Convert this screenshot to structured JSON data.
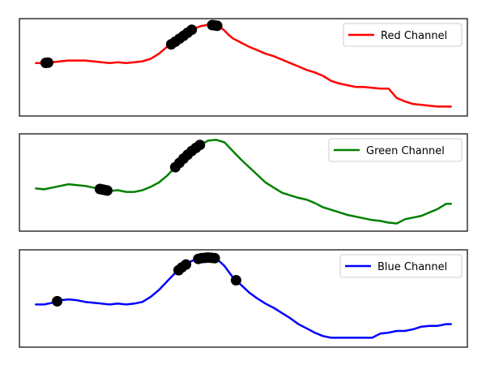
{
  "chart_data": [
    {
      "type": "line",
      "legend_position": "upper-right",
      "grid": false,
      "axes_ticks": false,
      "series": [
        {
          "name": "Red Channel",
          "color": "#ff0000",
          "x": [
            0,
            10,
            20,
            30,
            40,
            50,
            60,
            70,
            80,
            90,
            100,
            110,
            120,
            130,
            140,
            150,
            160,
            170,
            180,
            190,
            200,
            210,
            220,
            225,
            230,
            235,
            240,
            250,
            260,
            270,
            280,
            290,
            300,
            310,
            320,
            330,
            340,
            350,
            360,
            370,
            380,
            390,
            400,
            410,
            420,
            430,
            440,
            450,
            460,
            470,
            480,
            490,
            500,
            506
          ],
          "y": [
            0.55,
            0.55,
            0.56,
            0.57,
            0.58,
            0.58,
            0.58,
            0.57,
            0.56,
            0.55,
            0.56,
            0.55,
            0.56,
            0.57,
            0.6,
            0.66,
            0.74,
            0.8,
            0.87,
            0.94,
            0.98,
            1.0,
            0.99,
            0.97,
            0.93,
            0.88,
            0.84,
            0.79,
            0.74,
            0.7,
            0.66,
            0.63,
            0.59,
            0.55,
            0.51,
            0.47,
            0.44,
            0.4,
            0.34,
            0.31,
            0.29,
            0.27,
            0.27,
            0.26,
            0.25,
            0.25,
            0.14,
            0.1,
            0.07,
            0.06,
            0.05,
            0.04,
            0.04,
            0.04
          ]
        }
      ],
      "markers": {
        "color": "#000000",
        "x": [
          12,
          15,
          165,
          170,
          175,
          180,
          185,
          190,
          215,
          218,
          221
        ]
      }
    },
    {
      "type": "line",
      "legend_position": "upper-right",
      "grid": false,
      "axes_ticks": false,
      "series": [
        {
          "name": "Green Channel",
          "color": "#008000",
          "x": [
            0,
            10,
            20,
            30,
            40,
            50,
            60,
            70,
            80,
            90,
            100,
            110,
            120,
            130,
            140,
            150,
            160,
            170,
            180,
            190,
            200,
            210,
            220,
            230,
            240,
            250,
            260,
            270,
            280,
            290,
            300,
            310,
            320,
            330,
            340,
            350,
            360,
            370,
            380,
            390,
            400,
            410,
            420,
            430,
            440,
            450,
            460,
            470,
            480,
            490,
            500,
            506
          ],
          "y": [
            0.43,
            0.42,
            0.44,
            0.46,
            0.48,
            0.47,
            0.46,
            0.44,
            0.42,
            0.4,
            0.41,
            0.39,
            0.39,
            0.41,
            0.45,
            0.5,
            0.58,
            0.68,
            0.78,
            0.87,
            0.94,
            0.99,
            1.0,
            0.97,
            0.87,
            0.77,
            0.68,
            0.59,
            0.5,
            0.44,
            0.38,
            0.35,
            0.32,
            0.3,
            0.26,
            0.21,
            0.18,
            0.15,
            0.12,
            0.1,
            0.08,
            0.06,
            0.05,
            0.03,
            0.02,
            0.07,
            0.09,
            0.11,
            0.15,
            0.19,
            0.25,
            0.25
          ]
        }
      ],
      "markers": {
        "color": "#000000",
        "x": [
          78,
          81,
          84,
          87,
          170,
          175,
          180,
          185,
          190,
          195,
          200
        ]
      }
    },
    {
      "type": "line",
      "legend_position": "upper-right",
      "grid": false,
      "axes_ticks": false,
      "series": [
        {
          "name": "Blue Channel",
          "color": "#0000ff",
          "x": [
            0,
            10,
            20,
            30,
            40,
            50,
            60,
            70,
            80,
            90,
            100,
            110,
            120,
            130,
            140,
            150,
            160,
            170,
            180,
            190,
            200,
            210,
            220,
            230,
            240,
            250,
            260,
            270,
            280,
            290,
            300,
            310,
            320,
            330,
            340,
            350,
            360,
            370,
            380,
            390,
            400,
            410,
            420,
            430,
            440,
            450,
            460,
            470,
            480,
            490,
            500,
            506
          ],
          "y": [
            0.43,
            0.43,
            0.45,
            0.48,
            0.49,
            0.48,
            0.46,
            0.45,
            0.44,
            0.43,
            0.44,
            0.43,
            0.44,
            0.46,
            0.52,
            0.6,
            0.7,
            0.8,
            0.88,
            0.94,
            0.97,
            0.98,
            0.97,
            0.88,
            0.75,
            0.66,
            0.57,
            0.5,
            0.44,
            0.39,
            0.33,
            0.27,
            0.2,
            0.15,
            0.1,
            0.06,
            0.04,
            0.04,
            0.04,
            0.04,
            0.04,
            0.04,
            0.09,
            0.1,
            0.12,
            0.12,
            0.14,
            0.17,
            0.18,
            0.18,
            0.2,
            0.2
          ]
        }
      ],
      "markers": {
        "color": "#000000",
        "x": [
          26,
          174,
          178,
          183,
          198,
          202,
          206,
          210,
          214,
          218,
          244
        ]
      }
    }
  ]
}
